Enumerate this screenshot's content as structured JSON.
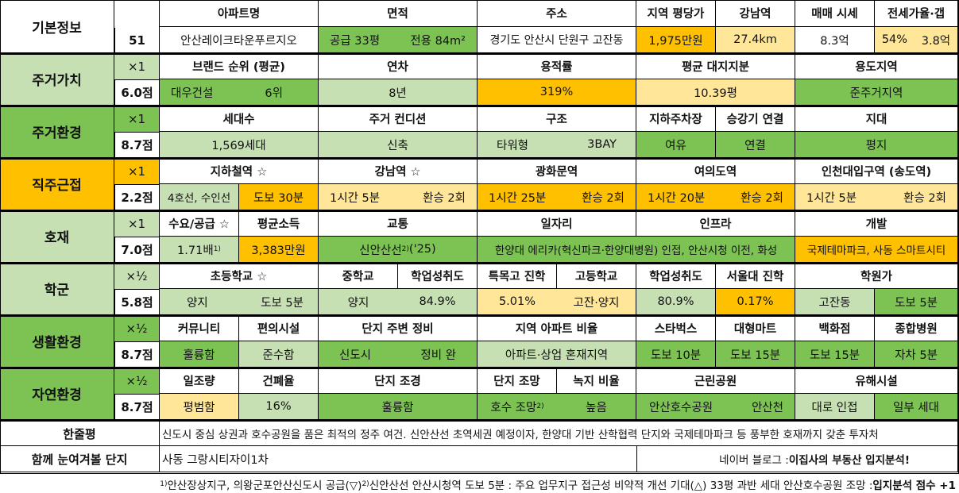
{
  "basic": {
    "label": "기본정보",
    "no": "51",
    "headers": {
      "apt": "아파트명",
      "area": "면적",
      "addr": "주소",
      "price": "지역 평당가",
      "gangnam": "강남역",
      "sale": "매매 시세",
      "jeonse": "전세가율·갭"
    },
    "apt": "안산레이크타운푸르지오",
    "area_supply": "공급 33평",
    "area_excl": "전용 84m²",
    "addr": "경기도 안산시 단원구 고잔동",
    "price": "1,975만원",
    "gangnam": "27.4km",
    "sale": "8.3억",
    "jeonse_rate": "54%",
    "jeonse_gap": "3.8억"
  },
  "rows": {
    "jugeo_value": {
      "label": "주거가치",
      "mult": "×1",
      "score": "6.0점",
      "h": {
        "brand": "브랜드 순위 (평균)",
        "age": "연차",
        "far": "용적률",
        "land": "평균 대지지분",
        "zone": "용도지역"
      },
      "v": {
        "brand_name": "대우건설",
        "brand_rank": "6위",
        "age": "8년",
        "far": "319%",
        "land": "10.39평",
        "zone": "준주거지역"
      }
    },
    "jugeo_env": {
      "label": "주거환경",
      "mult": "×1",
      "score": "8.7점",
      "h": {
        "households": "세대수",
        "condition": "주거 컨디션",
        "structure": "구조",
        "parking": "지하주차장",
        "elevator": "승강기 연결",
        "terrain": "지대"
      },
      "v": {
        "households": "1,569세대",
        "condition": "신축",
        "tower": "타워형",
        "bay": "3BAY",
        "parking": "여유",
        "elevator": "연결",
        "terrain": "평지"
      }
    },
    "jikju": {
      "label": "직주근접",
      "mult": "×1",
      "score": "2.2점",
      "h": {
        "subway": "지하철역 ☆",
        "gangnam": "강남역 ☆",
        "gwanghwamun": "광화문역",
        "yeouido": "여의도역",
        "incheon": "인천대입구역 (송도역)"
      },
      "v": {
        "subway_lines": "4호선, 수인선",
        "subway_walk": "도보 30분",
        "gangnam_time": "1시간 5분",
        "gangnam_tr": "환승 2회",
        "gwang_time": "1시간 25분",
        "gwang_tr": "환승 2회",
        "yeoui_time": "1시간 20분",
        "yeoui_tr": "환승 2회",
        "inch_time": "1시간 5분",
        "inch_tr": "환승 2회"
      }
    },
    "hoje": {
      "label": "호재",
      "mult": "×1",
      "score": "7.0점",
      "h": {
        "supply": "수요/공급 ☆",
        "income": "평균소득",
        "traffic": "교통",
        "jobs": "일자리",
        "infra": "인프라",
        "dev": "개발"
      },
      "v": {
        "supply": "1.71배",
        "supply_note": "1)",
        "income": "3,383만원",
        "traffic": "신안산선",
        "traffic_note": "2)",
        "traffic_year": " ('25)",
        "jobs_infra": "한양대 에리카(혁신파크·한양대병원) 인접, 안산시청 이전, 화성",
        "dev": "국제테마파크, 사동 스마트시티"
      }
    },
    "school": {
      "label": "학군",
      "mult": "×½",
      "score": "5.8점",
      "h": {
        "elem": "초등학교 ☆",
        "middle": "중학교",
        "middle_rate": "학업성취도",
        "special": "특목고 진학",
        "high": "고등학교",
        "high_rate": "학업성취도",
        "snu": "서울대 진학",
        "academy": "학원가"
      },
      "v": {
        "elem_name": "양지",
        "elem_walk": "도보 5분",
        "middle": "양지",
        "middle_rate": "84.9%",
        "special": "5.01%",
        "high": "고잔·양지",
        "high_rate": "80.9%",
        "snu": "0.17%",
        "academy_name": "고잔동",
        "academy_walk": "도보 5분"
      }
    },
    "life": {
      "label": "생활환경",
      "mult": "×½",
      "score": "8.7점",
      "h": {
        "community": "커뮤니티",
        "convenience": "편의시설",
        "maintenance": "단지 주변 정비",
        "ratio": "지역 아파트 비율",
        "starbucks": "스타벅스",
        "mart": "대형마트",
        "dept": "백화점",
        "hospital": "종합병원"
      },
      "v": {
        "community": "훌륭함",
        "convenience": "준수함",
        "new_town": "신도시",
        "maint": "정비 완",
        "ratio": "아파트·상업 혼재지역",
        "starbucks": "도보 10분",
        "mart": "도보 15분",
        "dept": "도보 15분",
        "hospital": "자차 5분"
      }
    },
    "nature": {
      "label": "자연환경",
      "mult": "×½",
      "score": "8.7점",
      "h": {
        "sunlight": "일조량",
        "coverage": "건폐율",
        "landscape": "단지 조경",
        "view": "단지 조망",
        "green": "녹지 비율",
        "park": "근린공원",
        "hazard": "유해시설"
      },
      "v": {
        "sunlight": "평범함",
        "coverage": "16%",
        "landscape": "훌륭함",
        "view": "호수 조망",
        "view_note": "2)",
        "green": "높음",
        "park1": "안산호수공원",
        "park2": "안산천",
        "hazard1": "대로 인접",
        "hazard2": "일부 세대"
      }
    }
  },
  "summary": {
    "label": "한줄평",
    "text": "신도시 중심 상권과 호수공원을 품은 최적의 정주 여건. 신안산선 초역세권 예정이자, 한양대 기반 산학협력 단지와 국제테마파크 등 풍부한 호재까지 갖춘 투자처"
  },
  "together": {
    "label": "함께 눈여겨볼 단지",
    "text": "사동 그랑시티자이1차",
    "blog_prefix": "네이버 블로그 : ",
    "blog_name": "이집사의 부동산 입지분석!"
  },
  "footnote": {
    "n1": "1)",
    "t1": " 안산장상지구, 의왕군포안산신도시 공급(▽) ",
    "n2": "2)",
    "t2": " 신안산선 안산시청역 도보 5분 : 주요 업무지구 접근성 비약적 개선 기대(△) 33평 과반 세대 안산호수공원 조망 : ",
    "bold": "입지분석 점수 +1"
  },
  "colors": {
    "green": "#7cc353",
    "light_green": "#c6e0b4",
    "yellow": "#ffe699",
    "orange": "#ffc000"
  }
}
